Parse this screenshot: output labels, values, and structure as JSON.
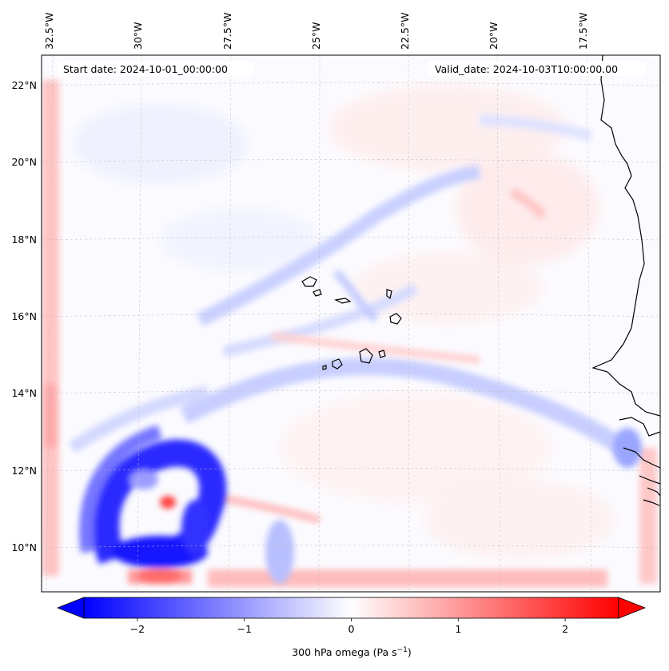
{
  "header": {
    "start_date": "Start date: 2024-10-01_00:00:00",
    "valid_date": "Valid_date: 2024-10-03T10:00:00.00"
  },
  "map": {
    "lon_labels": [
      "32.5°W",
      "30°W",
      "27.5°W",
      "25°W",
      "22.5°W",
      "20°W",
      "17.5°W"
    ],
    "lat_labels": [
      "22°N",
      "20°N",
      "18°N",
      "16°N",
      "14°N",
      "12°N",
      "10°N"
    ],
    "gridlines": "dashed",
    "coastlines": true
  },
  "colorbar": {
    "ticks": [
      "−2",
      "−1",
      "0",
      "1",
      "2"
    ],
    "tick_values": [
      -2,
      -1,
      0,
      1,
      2
    ],
    "range": [
      -2.5,
      2.5
    ],
    "label_main": "300 hPa omega (Pa s",
    "label_sup": "−1",
    "label_end": ")",
    "colormap": "bwr",
    "extend": "both",
    "color_min": "#0000ff",
    "color_mid": "#ffffff",
    "color_max": "#ff0000"
  }
}
